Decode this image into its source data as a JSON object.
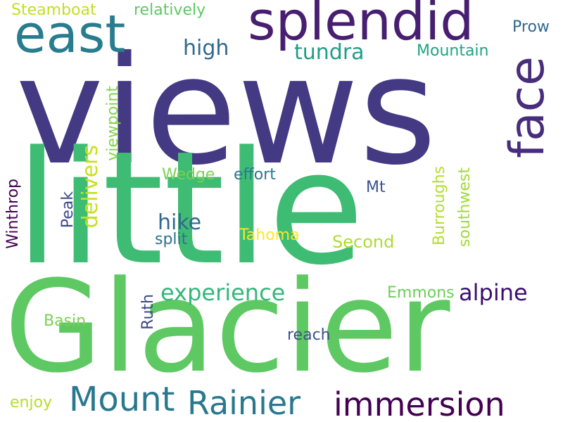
{
  "wordcloud": {
    "words": [
      {
        "text": "views",
        "color": "#443983"
      },
      {
        "text": "little",
        "color": "#3fbc73"
      },
      {
        "text": "Glacier",
        "color": "#5ec962"
      },
      {
        "text": "splendid",
        "color": "#481f70"
      },
      {
        "text": "east",
        "color": "#287c8e"
      },
      {
        "text": "face",
        "color": "#472d7b"
      },
      {
        "text": "Mount",
        "color": "#2a788e"
      },
      {
        "text": "Rainier",
        "color": "#2a788e"
      },
      {
        "text": "immersion",
        "color": "#440154"
      },
      {
        "text": "experience",
        "color": "#35b779"
      },
      {
        "text": "alpine",
        "color": "#3b0f70"
      },
      {
        "text": "high",
        "color": "#31688e"
      },
      {
        "text": "tundra",
        "color": "#1f9e89"
      },
      {
        "text": "Mountain",
        "color": "#20a486"
      },
      {
        "text": "Steamboat",
        "color": "#c2df23"
      },
      {
        "text": "relatively",
        "color": "#5ec962"
      },
      {
        "text": "Prow",
        "color": "#31688e"
      },
      {
        "text": "delivers",
        "color": "#c8e020"
      },
      {
        "text": "viewpoint",
        "color": "#84d44b"
      },
      {
        "text": "Wedge",
        "color": "#7ad151"
      },
      {
        "text": "effort",
        "color": "#2a788e"
      },
      {
        "text": "Winthrop",
        "color": "#440154"
      },
      {
        "text": "Peak",
        "color": "#3e4989"
      },
      {
        "text": "hike",
        "color": "#31688e"
      },
      {
        "text": "split",
        "color": "#2c728e"
      },
      {
        "text": "Tahoma",
        "color": "#fde725"
      },
      {
        "text": "Second",
        "color": "#addc30"
      },
      {
        "text": "Mt",
        "color": "#3b528b"
      },
      {
        "text": "Burroughs",
        "color": "#b5de2b"
      },
      {
        "text": "southwest",
        "color": "#a0da39"
      },
      {
        "text": "Emmons",
        "color": "#6ccd5a"
      },
      {
        "text": "Ruth",
        "color": "#3e4989"
      },
      {
        "text": "Basin",
        "color": "#7ad151"
      },
      {
        "text": "reach",
        "color": "#3b528b"
      },
      {
        "text": "enjoy",
        "color": "#b5de2b"
      }
    ]
  }
}
